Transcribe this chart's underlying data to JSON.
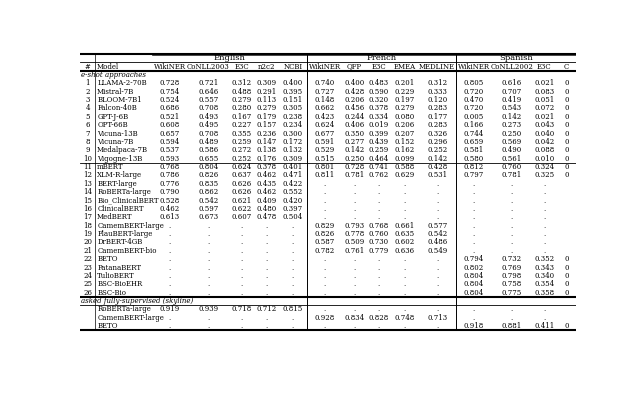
{
  "col_labels": [
    "#",
    "Model",
    "WikiNER",
    "CoNLL2003",
    "E3C",
    "n2c2",
    "NCBI",
    "WikiNER",
    "QFP",
    "E3C",
    "EMEA",
    "MEDLINE",
    "WikiNER",
    "CoNLL2002",
    "E3C",
    "C"
  ],
  "rows_few_shot": [
    [
      "1",
      "LLAMA-2-70B",
      "0.728",
      "0.721",
      "0.312",
      "0.309",
      "0.400",
      "0.740",
      "0.400",
      "0.483",
      "0.201",
      "0.312",
      "0.805",
      "0.616",
      "0.021",
      "0"
    ],
    [
      "2",
      "Mistral-7B",
      "0.754",
      "0.646",
      "0.488",
      "0.291",
      "0.395",
      "0.727",
      "0.428",
      "0.590",
      "0.229",
      "0.333",
      "0.720",
      "0.707",
      "0.083",
      "0"
    ],
    [
      "3",
      "BLOOM-7B1",
      "0.524",
      "0.557",
      "0.279",
      "0.113",
      "0.151",
      "0.148",
      "0.206",
      "0.320",
      "0.197",
      "0.120",
      "0.470",
      "0.419",
      "0.051",
      "0"
    ],
    [
      "4",
      "Falcon-40B",
      "0.686",
      "0.708",
      "0.280",
      "0.279",
      "0.305",
      "0.662",
      "0.456",
      "0.378",
      "0.279",
      "0.283",
      "0.720",
      "0.543",
      "0.072",
      "0"
    ],
    [
      "5",
      "GPT-J-6B",
      "0.521",
      "0.493",
      "0.167",
      "0.179",
      "0.238",
      "0.423",
      "0.244",
      "0.334",
      "0.080",
      "0.177",
      "0.005",
      "0.142",
      "0.021",
      "0"
    ],
    [
      "6",
      "OPT-66B",
      "0.608",
      "0.495",
      "0.227",
      "0.157",
      "0.234",
      "0.624",
      "0.406",
      "0.019",
      "0.206",
      "0.283",
      "0.166",
      "0.273",
      "0.043",
      "0"
    ],
    [
      "7",
      "Vicuna-13B",
      "0.657",
      "0.708",
      "0.355",
      "0.236",
      "0.300",
      "0.677",
      "0.350",
      "0.399",
      "0.207",
      "0.326",
      "0.744",
      "0.250",
      "0.040",
      "0"
    ],
    [
      "8",
      "Vicuna-7B",
      "0.594",
      "0.489",
      "0.259",
      "0.147",
      "0.172",
      "0.591",
      "0.277",
      "0.439",
      "0.152",
      "0.296",
      "0.659",
      "0.569",
      "0.042",
      "0"
    ],
    [
      "9",
      "Medalpaca-7B",
      "0.537",
      "0.586",
      "0.272",
      "0.138",
      "0.132",
      "0.529",
      "0.142",
      "0.259",
      "0.162",
      "0.252",
      "0.581",
      "0.490",
      "0.088",
      "0"
    ],
    [
      "10",
      "Vigogne-13B",
      "0.593",
      "0.655",
      "0.252",
      "0.176",
      "0.309",
      "0.515",
      "0.250",
      "0.464",
      "0.099",
      "0.142",
      "0.580",
      "0.561",
      "0.010",
      "0"
    ]
  ],
  "rows_masked": [
    [
      "11",
      "mBERT",
      "0.768",
      "0.804",
      "0.624",
      "0.378",
      "0.401",
      "0.801",
      "0.728",
      "0.741",
      "0.588",
      "0.428",
      "0.812",
      "0.760",
      "0.324",
      "0"
    ],
    [
      "12",
      "XLM-R-large",
      "0.786",
      "0.826",
      "0.637",
      "0.462",
      "0.471",
      "0.811",
      "0.781",
      "0.762",
      "0.629",
      "0.531",
      "0.797",
      "0.781",
      "0.325",
      "0"
    ],
    [
      "13",
      "BERT-large",
      "0.776",
      "0.835",
      "0.626",
      "0.435",
      "0.422",
      ".",
      ".",
      ".",
      ".",
      ".",
      ".",
      ".",
      ".",
      ""
    ],
    [
      "14",
      "RoBERTa-large",
      "0.790",
      "0.862",
      "0.626",
      "0.462",
      "0.552",
      ".",
      ".",
      ".",
      ".",
      ".",
      ".",
      ".",
      ".",
      ""
    ],
    [
      "15",
      "Bio_ClinicalBERT",
      "0.528",
      "0.542",
      "0.621",
      "0.409",
      "0.420",
      ".",
      ".",
      ".",
      ".",
      ".",
      ".",
      ".",
      ".",
      ""
    ],
    [
      "16",
      "ClinicalBERT",
      "0.462",
      "0.597",
      "0.622",
      "0.480",
      "0.397",
      ".",
      ".",
      ".",
      ".",
      ".",
      ".",
      ".",
      ".",
      ""
    ],
    [
      "17",
      "MedBERT",
      "0.613",
      "0.673",
      "0.607",
      "0.478",
      "0.504",
      ".",
      ".",
      ".",
      ".",
      ".",
      ".",
      ".",
      ".",
      ""
    ],
    [
      "18",
      "CamemBERT-large",
      ".",
      ".",
      ".",
      ".",
      ".",
      "0.829",
      "0.793",
      "0.768",
      "0.661",
      "0.577",
      ".",
      ".",
      ".",
      ""
    ],
    [
      "19",
      "FlauBERT-large",
      ".",
      ".",
      ".",
      ".",
      ".",
      "0.826",
      "0.778",
      "0.760",
      "0.635",
      "0.542",
      ".",
      ".",
      ".",
      ""
    ],
    [
      "20",
      "DrBERT-4GB",
      ".",
      ".",
      ".",
      ".",
      ".",
      "0.587",
      "0.509",
      "0.730",
      "0.602",
      "0.486",
      ".",
      ".",
      ".",
      ""
    ],
    [
      "21",
      "CamemBERT-bio",
      ".",
      ".",
      ".",
      ".",
      ".",
      "0.782",
      "0.761",
      "0.779",
      "0.636",
      "0.549",
      ".",
      ".",
      ".",
      ""
    ],
    [
      "22",
      "BETO",
      ".",
      ".",
      ".",
      ".",
      ".",
      ".",
      ".",
      ".",
      ".",
      ".",
      "0.794",
      "0.732",
      "0.352",
      "0"
    ],
    [
      "23",
      "PatanaBERT",
      ".",
      ".",
      ".",
      ".",
      ".",
      ".",
      ".",
      ".",
      ".",
      ".",
      "0.802",
      "0.769",
      "0.343",
      "0"
    ],
    [
      "24",
      "TulioBERT",
      ".",
      ".",
      ".",
      ".",
      ".",
      ".",
      ".",
      ".",
      ".",
      ".",
      "0.804",
      "0.798",
      "0.340",
      "0"
    ],
    [
      "25",
      "BSC-BioEHR",
      ".",
      ".",
      ".",
      ".",
      ".",
      ".",
      ".",
      ".",
      ".",
      ".",
      "0.804",
      "0.758",
      "0.354",
      "0"
    ],
    [
      "26",
      "BSC-Bio",
      ".",
      ".",
      ".",
      ".",
      ".",
      ".",
      ".",
      ".",
      ".",
      ".",
      "0.804",
      "0.775",
      "0.358",
      "0"
    ]
  ],
  "rows_skyline": [
    [
      "",
      "RoBERTa-large",
      "0.919",
      "0.939",
      "0.718",
      "0.712",
      "0.815",
      ".",
      ".",
      ".",
      ".",
      ".",
      ".",
      ".",
      ".",
      ""
    ],
    [
      "",
      "CamemBERT-large",
      ".",
      ".",
      ".",
      ".",
      ".",
      "0.928",
      "0.834",
      "0.828",
      "0.748",
      "0.713",
      ".",
      ".",
      ".",
      ""
    ],
    [
      "",
      "BETO",
      ".",
      ".",
      ".",
      ".",
      ".",
      ".",
      ".",
      ".",
      ".",
      ".",
      "0.918",
      "0.881",
      "0.411",
      "0"
    ]
  ],
  "few_shot_label": "e-shot approaches",
  "skyline_label": "asked fully-supervised (skyline)",
  "font_size": 5.0,
  "header_font_size": 6.0
}
